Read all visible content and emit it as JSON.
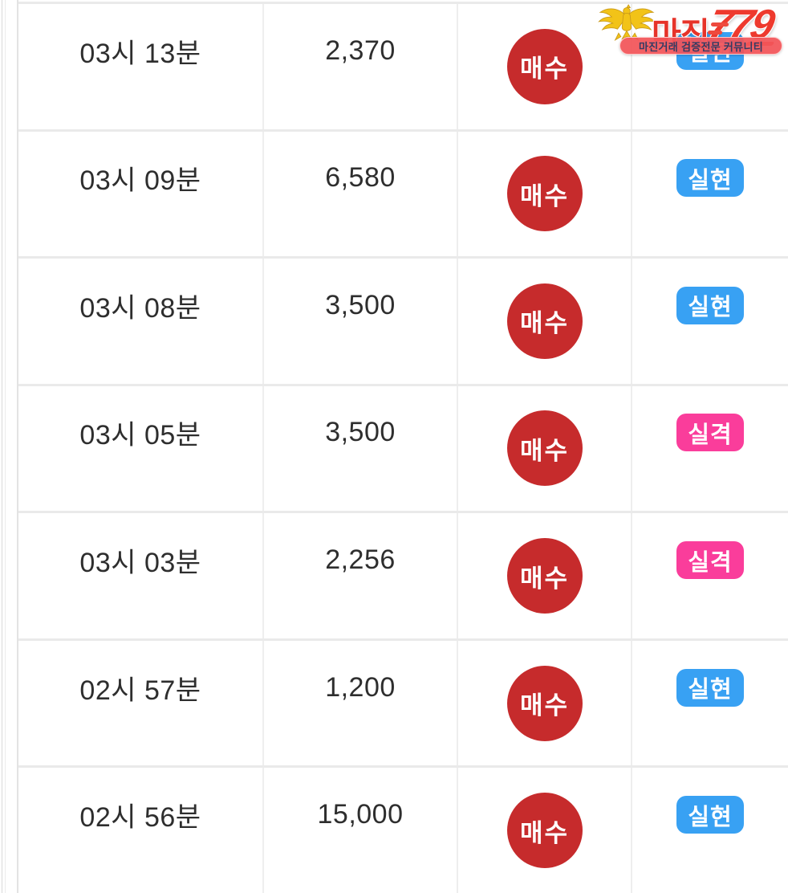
{
  "watermark": {
    "logo_main": "마진",
    "logo_suffix": "779",
    "tagline": "마진거래 검증전문 커뮤니티",
    "eagle_icon": "gold-eagle-emblem",
    "colors": {
      "logo_red": "#e63329",
      "banner_bg": "#f25458",
      "tagline_text": "#333b63",
      "eagle_gold": "#f2c318"
    }
  },
  "badges": {
    "buy_label": "매수",
    "realized_label": "실현",
    "disqualified_label": "실격",
    "colors": {
      "buy_circle": "#c62b2c",
      "realized_bg": "#38a1f3",
      "disqualified_bg": "#fa3d9b"
    }
  },
  "table": {
    "columns": [
      "time",
      "amount",
      "action",
      "status"
    ],
    "rows": [
      {
        "time": "03시 13분",
        "amount": "2,370",
        "action": "매수",
        "status": "실현",
        "status_type": "realized"
      },
      {
        "time": "03시 09분",
        "amount": "6,580",
        "action": "매수",
        "status": "실현",
        "status_type": "realized"
      },
      {
        "time": "03시 08분",
        "amount": "3,500",
        "action": "매수",
        "status": "실현",
        "status_type": "realized"
      },
      {
        "time": "03시 05분",
        "amount": "3,500",
        "action": "매수",
        "status": "실격",
        "status_type": "disqualified"
      },
      {
        "time": "03시 03분",
        "amount": "2,256",
        "action": "매수",
        "status": "실격",
        "status_type": "disqualified"
      },
      {
        "time": "02시 57분",
        "amount": "1,200",
        "action": "매수",
        "status": "실현",
        "status_type": "realized"
      },
      {
        "time": "02시 56분",
        "amount": "15,000",
        "action": "매수",
        "status": "실현",
        "status_type": "realized"
      }
    ]
  }
}
